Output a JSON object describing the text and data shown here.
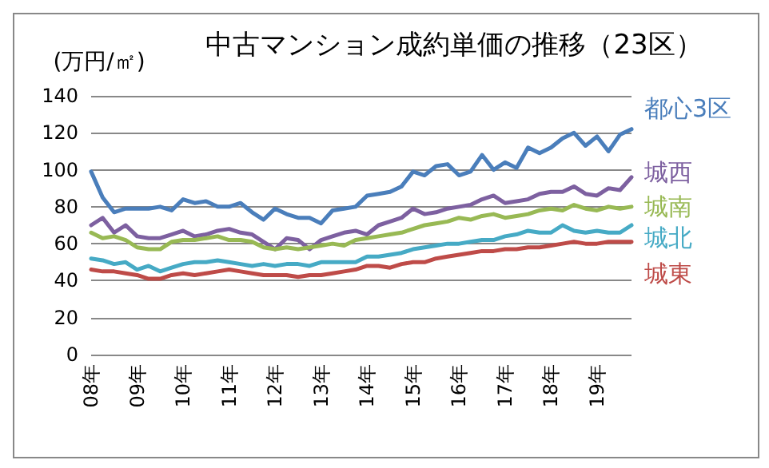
{
  "chart_data": {
    "type": "line",
    "title": "中古マンション成約単価の推移（23区）",
    "ylabel": "(万円/㎡)",
    "categories": [
      "08年",
      null,
      null,
      null,
      "09年",
      null,
      null,
      null,
      "10年",
      null,
      null,
      null,
      "11年",
      null,
      null,
      null,
      "12年",
      null,
      null,
      null,
      "13年",
      null,
      null,
      null,
      "14年",
      null,
      null,
      null,
      "15年",
      null,
      null,
      null,
      "16年",
      null,
      null,
      null,
      "17年",
      null,
      null,
      null,
      "18年",
      null,
      null,
      null,
      "19年",
      null,
      null,
      null
    ],
    "series": [
      {
        "name": "都心3区",
        "color": "#4a7ebb",
        "values": [
          99,
          85,
          77,
          79,
          79,
          79,
          80,
          78,
          84,
          82,
          83,
          80,
          80,
          82,
          77,
          73,
          79,
          76,
          74,
          74,
          71,
          78,
          79,
          80,
          86,
          87,
          88,
          91,
          99,
          97,
          102,
          103,
          97,
          99,
          108,
          100,
          104,
          101,
          112,
          109,
          112,
          117,
          120,
          113,
          118,
          110,
          119,
          122
        ]
      },
      {
        "name": "城西",
        "color": "#7d60a0",
        "values": [
          70,
          74,
          66,
          70,
          64,
          63,
          63,
          65,
          67,
          64,
          65,
          67,
          68,
          66,
          65,
          61,
          57,
          63,
          62,
          57,
          62,
          64,
          66,
          67,
          65,
          70,
          72,
          74,
          79,
          76,
          77,
          79,
          80,
          81,
          84,
          86,
          82,
          83,
          84,
          87,
          88,
          88,
          91,
          87,
          86,
          90,
          89,
          96
        ]
      },
      {
        "name": "城南",
        "color": "#98b954",
        "values": [
          66,
          63,
          64,
          62,
          58,
          57,
          57,
          61,
          62,
          62,
          63,
          64,
          62,
          62,
          61,
          58,
          57,
          58,
          57,
          58,
          59,
          60,
          59,
          62,
          63,
          64,
          65,
          66,
          68,
          70,
          71,
          72,
          74,
          73,
          75,
          76,
          74,
          75,
          76,
          78,
          79,
          78,
          81,
          79,
          78,
          80,
          79,
          80
        ]
      },
      {
        "name": "城北",
        "color": "#46aac5",
        "values": [
          52,
          51,
          49,
          50,
          46,
          48,
          45,
          47,
          49,
          50,
          50,
          51,
          50,
          49,
          48,
          49,
          48,
          49,
          49,
          48,
          50,
          50,
          50,
          50,
          53,
          53,
          54,
          55,
          57,
          58,
          59,
          60,
          60,
          61,
          62,
          62,
          64,
          65,
          67,
          66,
          66,
          70,
          67,
          66,
          67,
          66,
          66,
          70
        ]
      },
      {
        "name": "城東",
        "color": "#be4b48",
        "values": [
          46,
          45,
          45,
          44,
          43,
          41,
          41,
          43,
          44,
          43,
          44,
          45,
          46,
          45,
          44,
          43,
          43,
          43,
          42,
          43,
          43,
          44,
          45,
          46,
          48,
          48,
          47,
          49,
          50,
          50,
          52,
          53,
          54,
          55,
          56,
          56,
          57,
          57,
          58,
          58,
          59,
          60,
          61,
          60,
          60,
          61,
          61,
          61
        ]
      }
    ],
    "ylim": [
      0,
      140
    ],
    "yticks": [
      0,
      20,
      40,
      60,
      80,
      100,
      120,
      140
    ],
    "grid": "y",
    "legend": false,
    "marker": "none",
    "line_style": "solid"
  }
}
